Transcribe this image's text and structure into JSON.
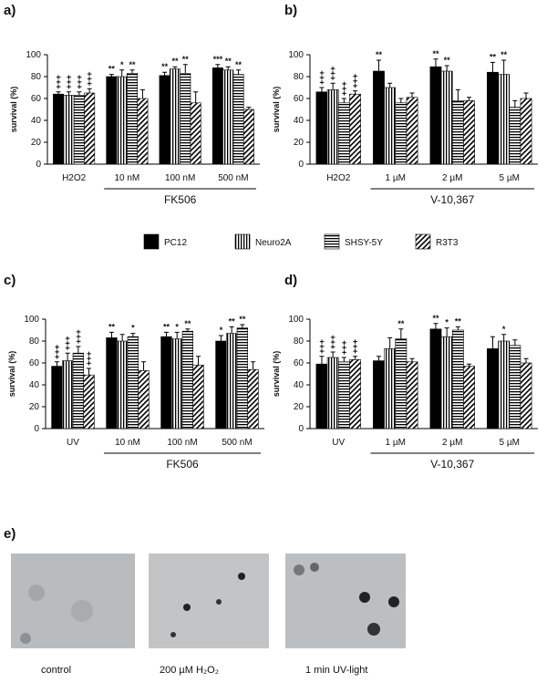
{
  "chart_data": [
    {
      "type": "bar",
      "panel": "a)",
      "y_label": "survival (%)",
      "group_label": "FK506",
      "ylim": [
        0,
        100
      ],
      "yticks": [
        0,
        20,
        40,
        60,
        80,
        100
      ],
      "categories": [
        "H2O2",
        "10 nM",
        "100 nM",
        "500 nM"
      ],
      "series": [
        {
          "name": "PC12",
          "pattern": "solid",
          "values": [
            64,
            80,
            81,
            88
          ],
          "errors": [
            2,
            2,
            3,
            3
          ],
          "marks": [
            "+++",
            "**",
            "**",
            "***"
          ]
        },
        {
          "name": "Neuro2A",
          "pattern": "vertical",
          "values": [
            63,
            80,
            87,
            86
          ],
          "errors": [
            3,
            6,
            2,
            3
          ],
          "marks": [
            "+++",
            "*",
            "**",
            "**"
          ]
        },
        {
          "name": "SHSY-5Y",
          "pattern": "horizontal",
          "values": [
            63,
            83,
            83,
            82
          ],
          "errors": [
            3,
            3,
            8,
            4
          ],
          "marks": [
            "+++",
            "**",
            "**",
            "**"
          ]
        },
        {
          "name": "R3T3",
          "pattern": "diagonal",
          "values": [
            65,
            60,
            56,
            50
          ],
          "errors": [
            4,
            8,
            10,
            2
          ],
          "marks": [
            "+++",
            null,
            null,
            null
          ]
        }
      ]
    },
    {
      "type": "bar",
      "panel": "b)",
      "y_label": "survival (%)",
      "group_label": "V-10,367",
      "ylim": [
        0,
        100
      ],
      "yticks": [
        0,
        20,
        40,
        60,
        80,
        100
      ],
      "categories": [
        "H2O2",
        "1 µM",
        "2 µM",
        "5 µM"
      ],
      "series": [
        {
          "values": [
            66,
            85,
            89,
            84
          ],
          "errors": [
            4,
            10,
            7,
            9
          ],
          "marks": [
            "+++",
            "**",
            "**",
            "**"
          ]
        },
        {
          "values": [
            68,
            70,
            85,
            82
          ],
          "errors": [
            6,
            4,
            5,
            13
          ],
          "marks": [
            "+++",
            null,
            "**",
            "**"
          ]
        },
        {
          "values": [
            56,
            56,
            58,
            52
          ],
          "errors": [
            4,
            4,
            10,
            6
          ],
          "marks": [
            "+++",
            null,
            null,
            null
          ]
        },
        {
          "values": [
            64,
            61,
            58,
            60
          ],
          "errors": [
            3,
            4,
            3,
            5
          ],
          "marks": [
            "+++",
            null,
            null,
            null
          ]
        }
      ]
    },
    {
      "type": "bar",
      "panel": "c)",
      "y_label": "survival (%)",
      "group_label": "FK506",
      "ylim": [
        0,
        100
      ],
      "yticks": [
        0,
        20,
        40,
        60,
        80,
        100
      ],
      "categories": [
        "UV",
        "10 nM",
        "100 nM",
        "500 nM"
      ],
      "series": [
        {
          "values": [
            57,
            83,
            84,
            80
          ],
          "errors": [
            4,
            5,
            4,
            5
          ],
          "marks": [
            "+++",
            "**",
            "**",
            "*"
          ]
        },
        {
          "values": [
            62,
            80,
            82,
            87
          ],
          "errors": [
            7,
            6,
            6,
            6
          ],
          "marks": [
            "+++",
            null,
            "*",
            "**"
          ]
        },
        {
          "values": [
            69,
            84,
            89,
            92
          ],
          "errors": [
            6,
            3,
            2,
            3
          ],
          "marks": [
            "+++",
            "*",
            "**",
            "**"
          ]
        },
        {
          "values": [
            49,
            53,
            58,
            54
          ],
          "errors": [
            6,
            8,
            8,
            7
          ],
          "marks": [
            "+++",
            null,
            null,
            null
          ]
        }
      ]
    },
    {
      "type": "bar",
      "panel": "d)",
      "y_label": "survival (%)",
      "group_label": "V-10,367",
      "ylim": [
        0,
        100
      ],
      "yticks": [
        0,
        20,
        40,
        60,
        80,
        100
      ],
      "categories": [
        "UV",
        "1 µM",
        "2 µM",
        "5 µM"
      ],
      "series": [
        {
          "values": [
            59,
            62,
            91,
            73
          ],
          "errors": [
            7,
            4,
            5,
            11
          ],
          "marks": [
            "+++",
            null,
            "**",
            null
          ]
        },
        {
          "values": [
            65,
            73,
            84,
            80
          ],
          "errors": [
            5,
            10,
            8,
            6
          ],
          "marks": [
            "+++",
            null,
            "*",
            "*"
          ]
        },
        {
          "values": [
            61,
            82,
            90,
            76
          ],
          "errors": [
            4,
            9,
            3,
            5
          ],
          "marks": [
            "+++",
            "**",
            "**",
            null
          ]
        },
        {
          "values": [
            63,
            61,
            57,
            60
          ],
          "errors": [
            3,
            3,
            2,
            4
          ],
          "marks": [
            "+++",
            null,
            null,
            null
          ]
        }
      ]
    }
  ],
  "panel_e": {
    "label": "e)",
    "captions": [
      "control",
      "200 µM H₂O₂",
      "1 min UV-light"
    ]
  }
}
